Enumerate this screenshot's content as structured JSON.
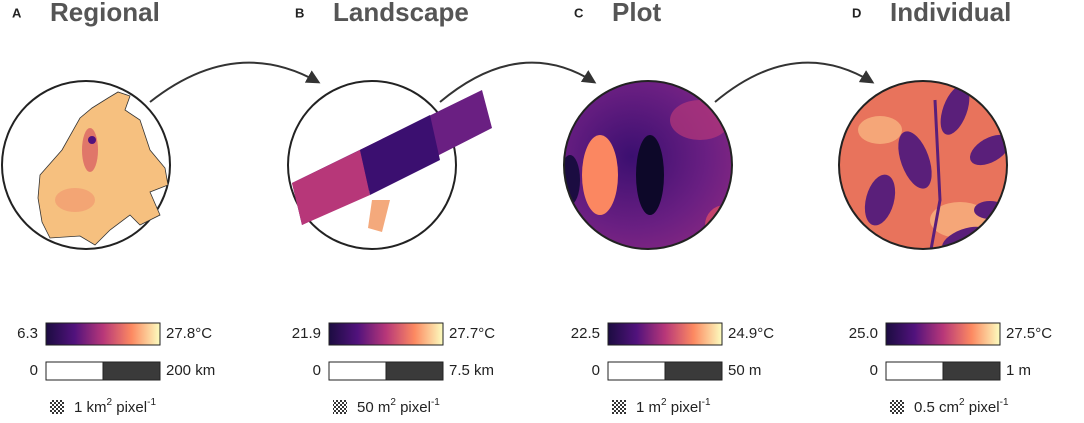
{
  "panels": [
    {
      "letter": "A",
      "title": "Regional",
      "colorbar": {
        "min": "6.3",
        "max": "27.8°C"
      },
      "scalebar": {
        "start": "0",
        "end": "200 km"
      },
      "resolution": {
        "text": "1 km",
        "sup": "2",
        "unit": " pixel",
        "unit_sup": "-1"
      }
    },
    {
      "letter": "B",
      "title": "Landscape",
      "colorbar": {
        "min": "21.9",
        "max": "27.7°C"
      },
      "scalebar": {
        "start": "0",
        "end": "7.5 km"
      },
      "resolution": {
        "text": "50 m",
        "sup": "2",
        "unit": " pixel",
        "unit_sup": "-1"
      }
    },
    {
      "letter": "C",
      "title": "Plot",
      "colorbar": {
        "min": "22.5",
        "max": "24.9°C"
      },
      "scalebar": {
        "start": "0",
        "end": "50 m"
      },
      "resolution": {
        "text": "1 m",
        "sup": "2",
        "unit": " pixel",
        "unit_sup": "-1"
      }
    },
    {
      "letter": "D",
      "title": "Individual",
      "colorbar": {
        "min": "25.0",
        "max": "27.5°C"
      },
      "scalebar": {
        "start": "0",
        "end": "1 m"
      },
      "resolution": {
        "text": "0.5 cm",
        "sup": "2",
        "unit": " pixel",
        "unit_sup": "-1"
      }
    }
  ]
}
